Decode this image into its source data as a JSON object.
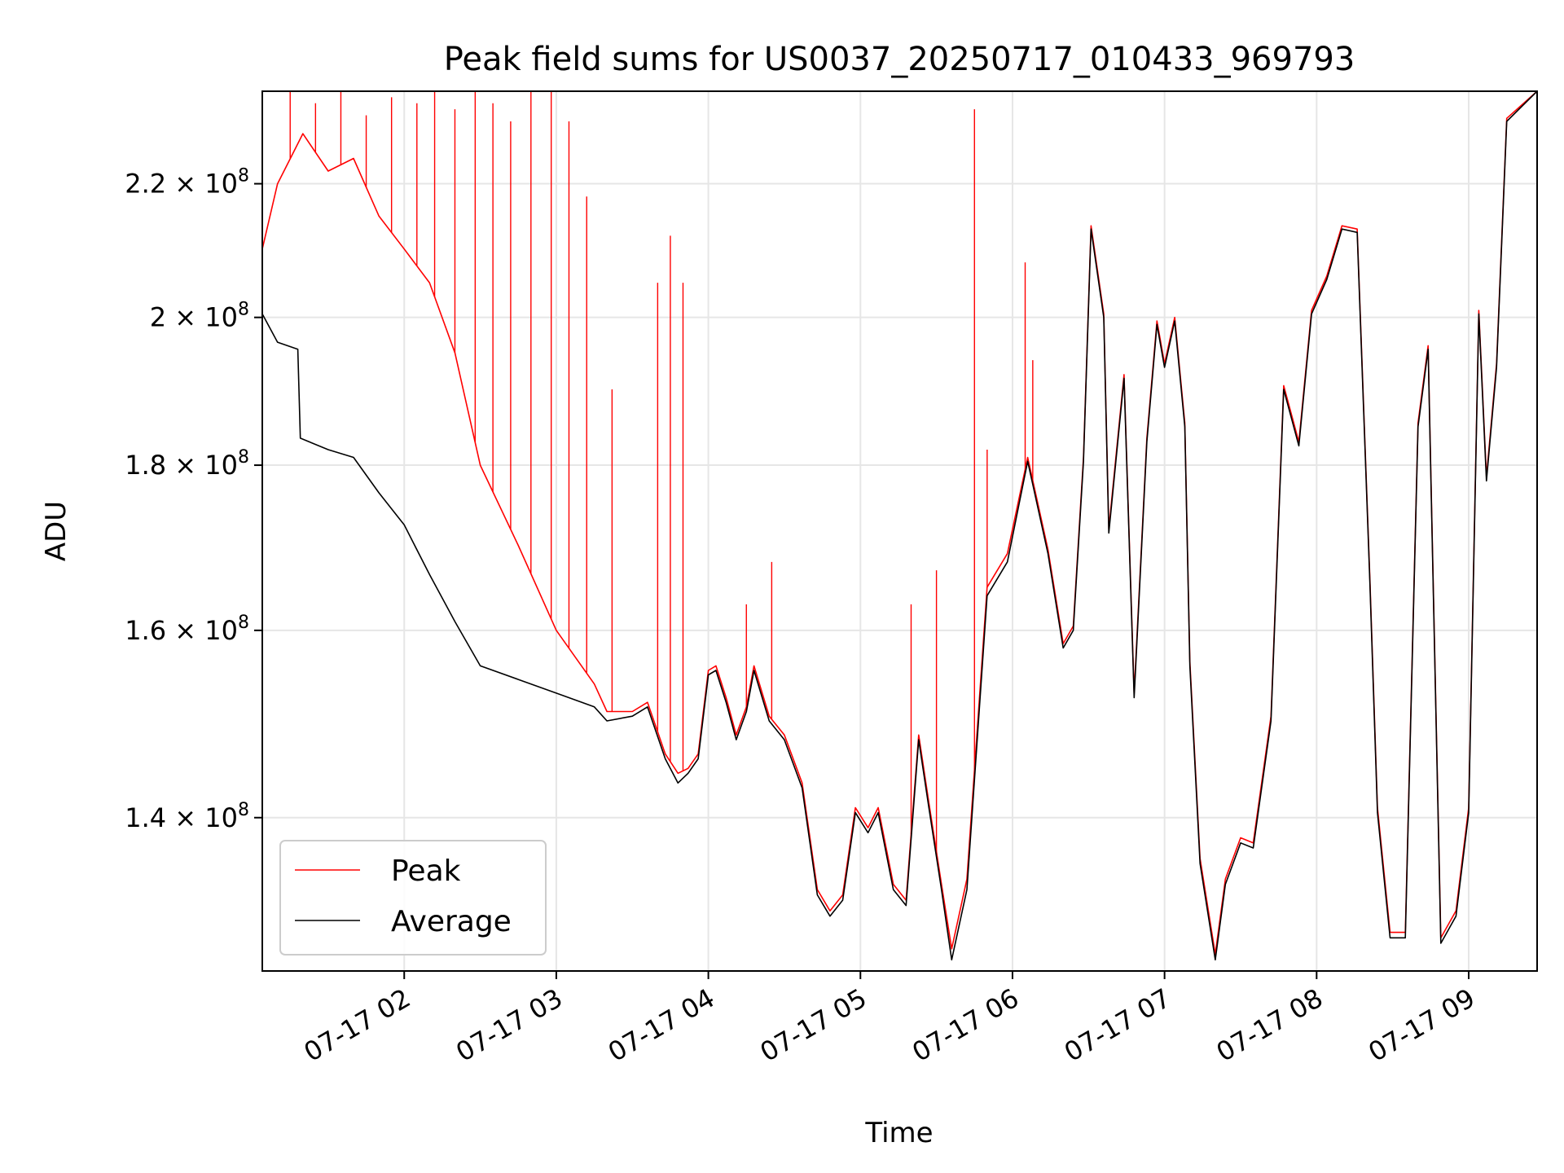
{
  "chart_data": {
    "type": "line",
    "title": "Peak field sums for US0037_20250717_010433_969793",
    "xlabel": "Time",
    "ylabel": "ADU",
    "y_scale": "log",
    "xlim": [
      "2025-07-17T01:04",
      "2025-07-17T09:27"
    ],
    "ylim": [
      125500000,
      235000000
    ],
    "grid": true,
    "legend_position": "lower-left",
    "x_ticks": [
      {
        "t": "2025-07-17T02:00",
        "label": "07-17 02"
      },
      {
        "t": "2025-07-17T03:00",
        "label": "07-17 03"
      },
      {
        "t": "2025-07-17T04:00",
        "label": "07-17 04"
      },
      {
        "t": "2025-07-17T05:00",
        "label": "07-17 05"
      },
      {
        "t": "2025-07-17T06:00",
        "label": "07-17 06"
      },
      {
        "t": "2025-07-17T07:00",
        "label": "07-17 07"
      },
      {
        "t": "2025-07-17T08:00",
        "label": "07-17 08"
      },
      {
        "t": "2025-07-17T09:00",
        "label": "07-17 09"
      }
    ],
    "y_ticks": [
      {
        "value": 140000000,
        "mantissa": "1.4"
      },
      {
        "value": 160000000,
        "mantissa": "1.6"
      },
      {
        "value": 180000000,
        "mantissa": "1.8"
      },
      {
        "value": 200000000,
        "mantissa": "2"
      },
      {
        "value": 220000000,
        "mantissa": "2.2"
      }
    ],
    "y_tick_times": "×",
    "y_tick_base": "10",
    "y_tick_exponent": "8",
    "series": [
      {
        "name": "Average",
        "color": "#000000",
        "points": [
          [
            "2025-07-17T01:04",
            200500000
          ],
          [
            "2025-07-17T01:10",
            196500000
          ],
          [
            "2025-07-17T01:18",
            195500000
          ],
          [
            "2025-07-17T01:19",
            183500000
          ],
          [
            "2025-07-17T01:30",
            182000000
          ],
          [
            "2025-07-17T01:40",
            181000000
          ],
          [
            "2025-07-17T01:50",
            176500000
          ],
          [
            "2025-07-17T02:00",
            172500000
          ],
          [
            "2025-07-17T02:10",
            166500000
          ],
          [
            "2025-07-17T02:20",
            161000000
          ],
          [
            "2025-07-17T02:30",
            156000000
          ],
          [
            "2025-07-17T02:45",
            154500000
          ],
          [
            "2025-07-17T03:00",
            153000000
          ],
          [
            "2025-07-17T03:15",
            151500000
          ],
          [
            "2025-07-17T03:20",
            150000000
          ],
          [
            "2025-07-17T03:30",
            150500000
          ],
          [
            "2025-07-17T03:36",
            151500000
          ],
          [
            "2025-07-17T03:43",
            146000000
          ],
          [
            "2025-07-17T03:48",
            143500000
          ],
          [
            "2025-07-17T03:52",
            144500000
          ],
          [
            "2025-07-17T03:56",
            146000000
          ],
          [
            "2025-07-17T04:00",
            155000000
          ],
          [
            "2025-07-17T04:03",
            155500000
          ],
          [
            "2025-07-17T04:07",
            152000000
          ],
          [
            "2025-07-17T04:11",
            148000000
          ],
          [
            "2025-07-17T04:15",
            151000000
          ],
          [
            "2025-07-17T04:18",
            155500000
          ],
          [
            "2025-07-17T04:24",
            150000000
          ],
          [
            "2025-07-17T04:30",
            148000000
          ],
          [
            "2025-07-17T04:37",
            143000000
          ],
          [
            "2025-07-17T04:43",
            132500000
          ],
          [
            "2025-07-17T04:48",
            130500000
          ],
          [
            "2025-07-17T04:53",
            132000000
          ],
          [
            "2025-07-17T04:58",
            140500000
          ],
          [
            "2025-07-17T05:03",
            138500000
          ],
          [
            "2025-07-17T05:07",
            140500000
          ],
          [
            "2025-07-17T05:13",
            133000000
          ],
          [
            "2025-07-17T05:18",
            131500000
          ],
          [
            "2025-07-17T05:23",
            148000000
          ],
          [
            "2025-07-17T05:27",
            141000000
          ],
          [
            "2025-07-17T05:32",
            133000000
          ],
          [
            "2025-07-17T05:36",
            126500000
          ],
          [
            "2025-07-17T05:42",
            133000000
          ],
          [
            "2025-07-17T05:50",
            164000000
          ],
          [
            "2025-07-17T05:58",
            168000000
          ],
          [
            "2025-07-17T06:06",
            180500000
          ],
          [
            "2025-07-17T06:14",
            169000000
          ],
          [
            "2025-07-17T06:20",
            158000000
          ],
          [
            "2025-07-17T06:24",
            160000000
          ],
          [
            "2025-07-17T06:28",
            180500000
          ],
          [
            "2025-07-17T06:31",
            213000000
          ],
          [
            "2025-07-17T06:36",
            200000000
          ],
          [
            "2025-07-17T06:38",
            171500000
          ],
          [
            "2025-07-17T06:44",
            191500000
          ],
          [
            "2025-07-17T06:48",
            152500000
          ],
          [
            "2025-07-17T06:53",
            183000000
          ],
          [
            "2025-07-17T06:57",
            199000000
          ],
          [
            "2025-07-17T07:00",
            193000000
          ],
          [
            "2025-07-17T07:04",
            199500000
          ],
          [
            "2025-07-17T07:08",
            185000000
          ],
          [
            "2025-07-17T07:10",
            156000000
          ],
          [
            "2025-07-17T07:14",
            135500000
          ],
          [
            "2025-07-17T07:20",
            126500000
          ],
          [
            "2025-07-17T07:24",
            133500000
          ],
          [
            "2025-07-17T07:30",
            137500000
          ],
          [
            "2025-07-17T07:35",
            137000000
          ],
          [
            "2025-07-17T07:42",
            150000000
          ],
          [
            "2025-07-17T07:47",
            190000000
          ],
          [
            "2025-07-17T07:53",
            182500000
          ],
          [
            "2025-07-17T07:58",
            200500000
          ],
          [
            "2025-07-17T08:04",
            205500000
          ],
          [
            "2025-07-17T08:10",
            213000000
          ],
          [
            "2025-07-17T08:16",
            212500000
          ],
          [
            "2025-07-17T08:21",
            165500000
          ],
          [
            "2025-07-17T08:24",
            140500000
          ],
          [
            "2025-07-17T08:29",
            128500000
          ],
          [
            "2025-07-17T08:35",
            128500000
          ],
          [
            "2025-07-17T08:40",
            185000000
          ],
          [
            "2025-07-17T08:44",
            195500000
          ],
          [
            "2025-07-17T08:49",
            128000000
          ],
          [
            "2025-07-17T08:55",
            130500000
          ],
          [
            "2025-07-17T09:00",
            140500000
          ],
          [
            "2025-07-17T09:04",
            200500000
          ],
          [
            "2025-07-17T09:07",
            178000000
          ],
          [
            "2025-07-17T09:11",
            193000000
          ],
          [
            "2025-07-17T09:15",
            230000000
          ],
          [
            "2025-07-17T09:27",
            235000000
          ]
        ],
        "spikes": []
      },
      {
        "name": "Peak",
        "color": "#ff0000",
        "points": [
          [
            "2025-07-17T01:04",
            210000000
          ],
          [
            "2025-07-17T01:10",
            220000000
          ],
          [
            "2025-07-17T01:20",
            228000000
          ],
          [
            "2025-07-17T01:30",
            222000000
          ],
          [
            "2025-07-17T01:40",
            224000000
          ],
          [
            "2025-07-17T01:50",
            215000000
          ],
          [
            "2025-07-17T02:00",
            210000000
          ],
          [
            "2025-07-17T02:10",
            205000000
          ],
          [
            "2025-07-17T02:20",
            195000000
          ],
          [
            "2025-07-17T02:30",
            180000000
          ],
          [
            "2025-07-17T02:45",
            170000000
          ],
          [
            "2025-07-17T03:00",
            160000000
          ],
          [
            "2025-07-17T03:15",
            154000000
          ],
          [
            "2025-07-17T03:20",
            151000000
          ],
          [
            "2025-07-17T03:30",
            151000000
          ],
          [
            "2025-07-17T03:36",
            152000000
          ],
          [
            "2025-07-17T03:43",
            146500000
          ],
          [
            "2025-07-17T03:48",
            144500000
          ],
          [
            "2025-07-17T03:52",
            145000000
          ],
          [
            "2025-07-17T03:56",
            146500000
          ],
          [
            "2025-07-17T04:00",
            155500000
          ],
          [
            "2025-07-17T04:03",
            156000000
          ],
          [
            "2025-07-17T04:07",
            152500000
          ],
          [
            "2025-07-17T04:11",
            148500000
          ],
          [
            "2025-07-17T04:15",
            151500000
          ],
          [
            "2025-07-17T04:18",
            156000000
          ],
          [
            "2025-07-17T04:24",
            150500000
          ],
          [
            "2025-07-17T04:30",
            148500000
          ],
          [
            "2025-07-17T04:37",
            143500000
          ],
          [
            "2025-07-17T04:43",
            133000000
          ],
          [
            "2025-07-17T04:48",
            131000000
          ],
          [
            "2025-07-17T04:53",
            132500000
          ],
          [
            "2025-07-17T04:58",
            141000000
          ],
          [
            "2025-07-17T05:03",
            139000000
          ],
          [
            "2025-07-17T05:07",
            141000000
          ],
          [
            "2025-07-17T05:13",
            133500000
          ],
          [
            "2025-07-17T05:18",
            132000000
          ],
          [
            "2025-07-17T05:23",
            148500000
          ],
          [
            "2025-07-17T05:27",
            141500000
          ],
          [
            "2025-07-17T05:32",
            133500000
          ],
          [
            "2025-07-17T05:36",
            127500000
          ],
          [
            "2025-07-17T05:42",
            134000000
          ],
          [
            "2025-07-17T05:50",
            165000000
          ],
          [
            "2025-07-17T05:58",
            169000000
          ],
          [
            "2025-07-17T06:06",
            181000000
          ],
          [
            "2025-07-17T06:14",
            169500000
          ],
          [
            "2025-07-17T06:20",
            158500000
          ],
          [
            "2025-07-17T06:24",
            160500000
          ],
          [
            "2025-07-17T06:28",
            181000000
          ],
          [
            "2025-07-17T06:31",
            213500000
          ],
          [
            "2025-07-17T06:36",
            200500000
          ],
          [
            "2025-07-17T06:38",
            172000000
          ],
          [
            "2025-07-17T06:44",
            192000000
          ],
          [
            "2025-07-17T06:48",
            153000000
          ],
          [
            "2025-07-17T06:53",
            183500000
          ],
          [
            "2025-07-17T06:57",
            199500000
          ],
          [
            "2025-07-17T07:00",
            193500000
          ],
          [
            "2025-07-17T07:04",
            200000000
          ],
          [
            "2025-07-17T07:08",
            185500000
          ],
          [
            "2025-07-17T07:10",
            156500000
          ],
          [
            "2025-07-17T07:14",
            136000000
          ],
          [
            "2025-07-17T07:20",
            127000000
          ],
          [
            "2025-07-17T07:24",
            134000000
          ],
          [
            "2025-07-17T07:30",
            138000000
          ],
          [
            "2025-07-17T07:35",
            137500000
          ],
          [
            "2025-07-17T07:42",
            150500000
          ],
          [
            "2025-07-17T07:47",
            190500000
          ],
          [
            "2025-07-17T07:53",
            183000000
          ],
          [
            "2025-07-17T07:58",
            201000000
          ],
          [
            "2025-07-17T08:04",
            206000000
          ],
          [
            "2025-07-17T08:10",
            213500000
          ],
          [
            "2025-07-17T08:16",
            213000000
          ],
          [
            "2025-07-17T08:21",
            166000000
          ],
          [
            "2025-07-17T08:24",
            141000000
          ],
          [
            "2025-07-17T08:29",
            129000000
          ],
          [
            "2025-07-17T08:35",
            129000000
          ],
          [
            "2025-07-17T08:40",
            185500000
          ],
          [
            "2025-07-17T08:44",
            196000000
          ],
          [
            "2025-07-17T08:49",
            128500000
          ],
          [
            "2025-07-17T08:55",
            131000000
          ],
          [
            "2025-07-17T09:00",
            141000000
          ],
          [
            "2025-07-17T09:04",
            201000000
          ],
          [
            "2025-07-17T09:07",
            178500000
          ],
          [
            "2025-07-17T09:11",
            193500000
          ],
          [
            "2025-07-17T09:15",
            230500000
          ],
          [
            "2025-07-17T09:27",
            235000000
          ]
        ],
        "spikes": [
          [
            "2025-07-17T01:15",
            235000000
          ],
          [
            "2025-07-17T01:25",
            233000000
          ],
          [
            "2025-07-17T01:35",
            235000000
          ],
          [
            "2025-07-17T01:45",
            231000000
          ],
          [
            "2025-07-17T01:55",
            234000000
          ],
          [
            "2025-07-17T02:05",
            233000000
          ],
          [
            "2025-07-17T02:12",
            235000000
          ],
          [
            "2025-07-17T02:20",
            232000000
          ],
          [
            "2025-07-17T02:28",
            235000000
          ],
          [
            "2025-07-17T02:35",
            233000000
          ],
          [
            "2025-07-17T02:42",
            230000000
          ],
          [
            "2025-07-17T02:50",
            235000000
          ],
          [
            "2025-07-17T02:58",
            235000000
          ],
          [
            "2025-07-17T03:05",
            230000000
          ],
          [
            "2025-07-17T03:12",
            218000000
          ],
          [
            "2025-07-17T03:22",
            190000000
          ],
          [
            "2025-07-17T03:40",
            205000000
          ],
          [
            "2025-07-17T03:45",
            212000000
          ],
          [
            "2025-07-17T03:50",
            205000000
          ],
          [
            "2025-07-17T04:15",
            163000000
          ],
          [
            "2025-07-17T04:25",
            168000000
          ],
          [
            "2025-07-17T05:20",
            163000000
          ],
          [
            "2025-07-17T05:30",
            167000000
          ],
          [
            "2025-07-17T05:45",
            232000000
          ],
          [
            "2025-07-17T05:50",
            182000000
          ],
          [
            "2025-07-17T06:05",
            208000000
          ],
          [
            "2025-07-17T06:08",
            194000000
          ]
        ]
      }
    ]
  }
}
